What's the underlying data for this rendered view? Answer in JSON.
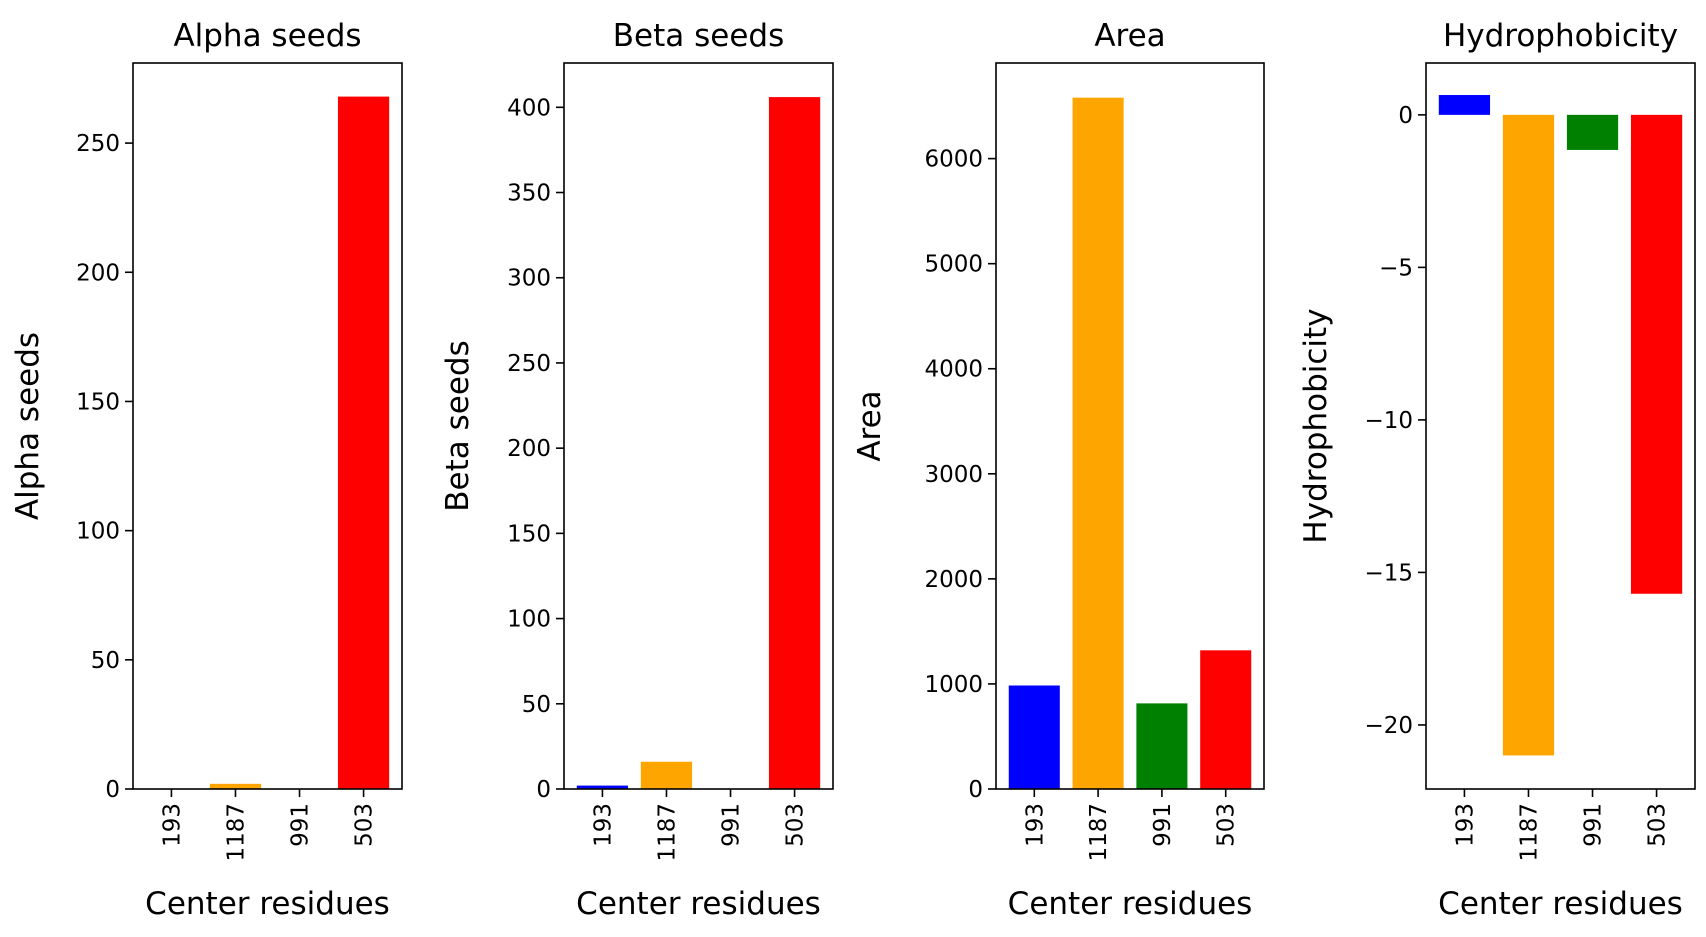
{
  "chart_data": [
    {
      "type": "bar",
      "title": "Alpha seeds",
      "xlabel": "Center residues",
      "ylabel": "Alpha seeds",
      "categories": [
        "193",
        "1187",
        "991",
        "503"
      ],
      "values": [
        0,
        2,
        0,
        268
      ],
      "colors": [
        "#0000ff",
        "#ffa500",
        "#008000",
        "#ff0000"
      ],
      "ylim": [
        0,
        281
      ],
      "yticks": [
        0,
        50,
        100,
        150,
        200,
        250
      ],
      "yticklabels": [
        "0",
        "50",
        "100",
        "150",
        "200",
        "250"
      ],
      "grid": false
    },
    {
      "type": "bar",
      "title": "Beta seeds",
      "xlabel": "Center residues",
      "ylabel": "Beta seeds",
      "categories": [
        "193",
        "1187",
        "991",
        "503"
      ],
      "values": [
        2,
        16,
        0,
        406
      ],
      "colors": [
        "#0000ff",
        "#ffa500",
        "#008000",
        "#ff0000"
      ],
      "ylim": [
        0,
        426
      ],
      "yticks": [
        0,
        50,
        100,
        150,
        200,
        250,
        300,
        350,
        400
      ],
      "yticklabels": [
        "0",
        "50",
        "100",
        "150",
        "200",
        "250",
        "300",
        "350",
        "400"
      ],
      "grid": false
    },
    {
      "type": "bar",
      "title": "Area",
      "xlabel": "Center residues",
      "ylabel": "Area",
      "categories": [
        "193",
        "1187",
        "991",
        "503"
      ],
      "values": [
        985,
        6580,
        815,
        1320
      ],
      "colors": [
        "#0000ff",
        "#ffa500",
        "#008000",
        "#ff0000"
      ],
      "ylim": [
        0,
        6910
      ],
      "yticks": [
        0,
        1000,
        2000,
        3000,
        4000,
        5000,
        6000
      ],
      "yticklabels": [
        "0",
        "1000",
        "2000",
        "3000",
        "4000",
        "5000",
        "6000"
      ],
      "grid": false
    },
    {
      "type": "bar",
      "title": "Hydrophobicity",
      "xlabel": "Center residues",
      "ylabel": "Hydrophobicity",
      "categories": [
        "193",
        "1187",
        "991",
        "503"
      ],
      "values": [
        0.65,
        -21.0,
        -1.15,
        -15.7
      ],
      "colors": [
        "#0000ff",
        "#ffa500",
        "#008000",
        "#ff0000"
      ],
      "ylim": [
        -22.1,
        1.7
      ],
      "yticks": [
        -20,
        -15,
        -10,
        -5,
        0
      ],
      "yticklabels": [
        "−20",
        "−15",
        "−10",
        "−5",
        "0"
      ],
      "grid": false
    }
  ]
}
